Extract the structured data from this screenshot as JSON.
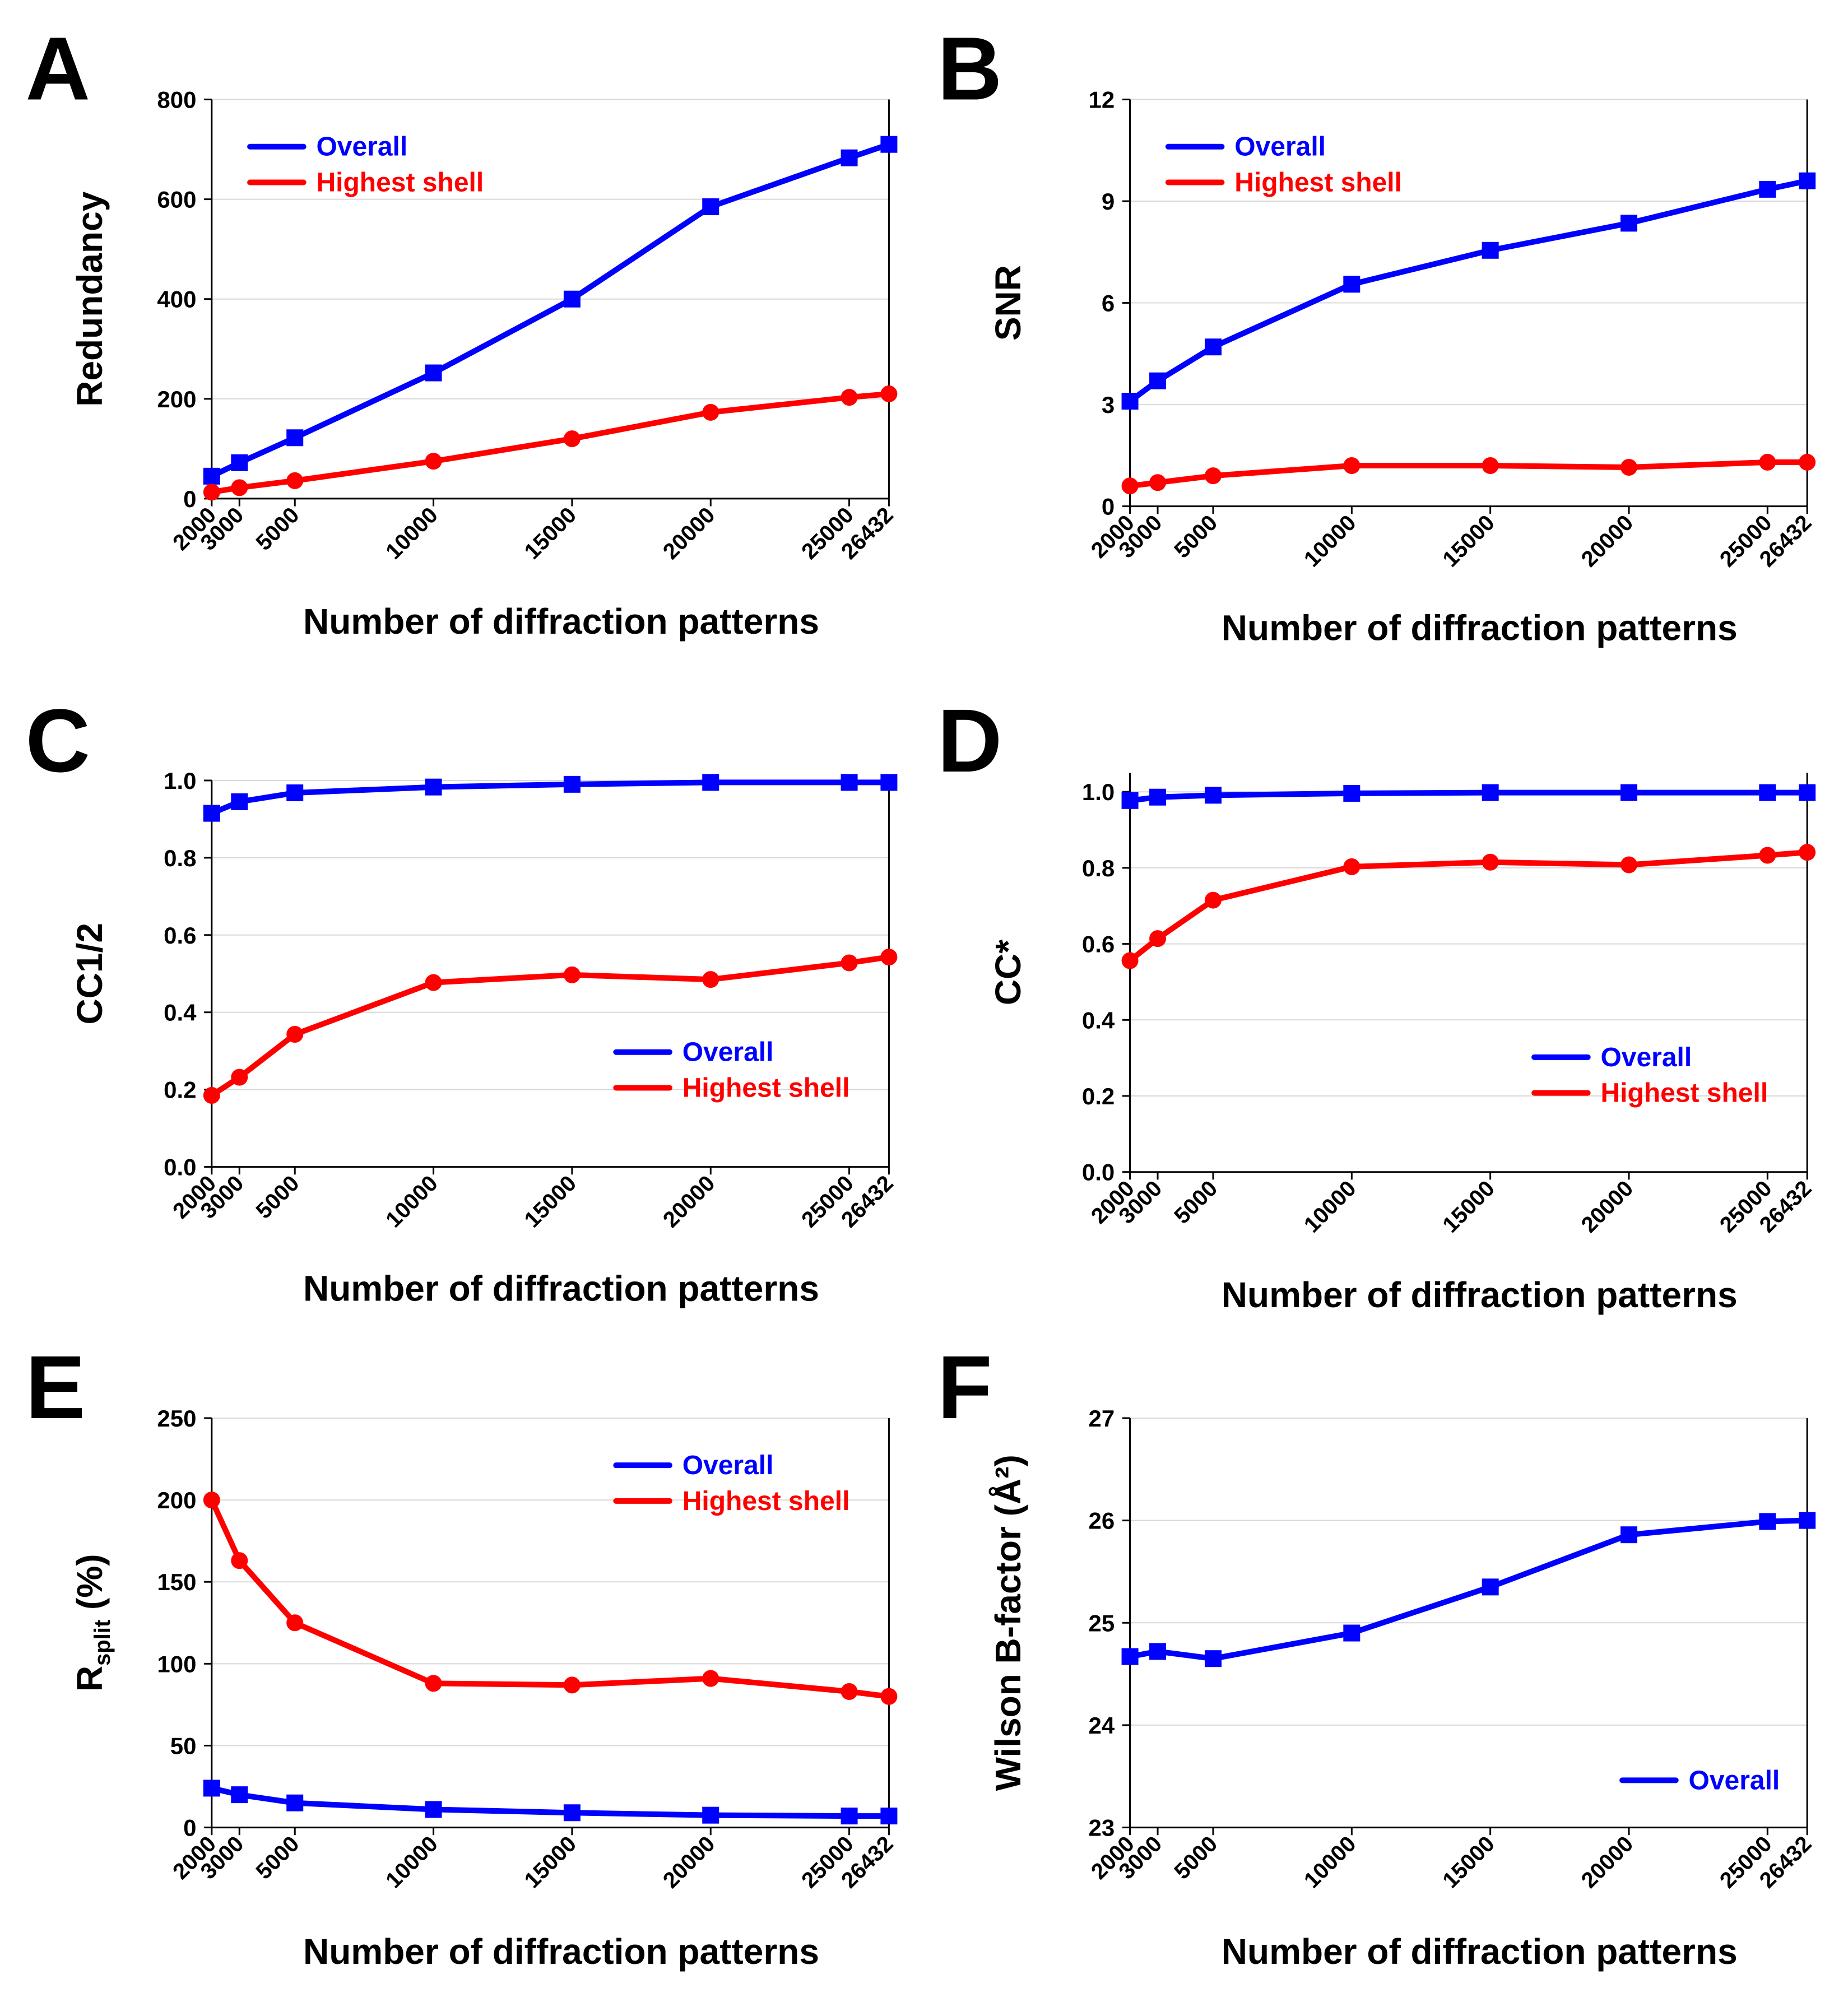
{
  "figure": {
    "x_categories": [
      2000,
      3000,
      5000,
      10000,
      15000,
      20000,
      25000,
      26432
    ],
    "series_colors": {
      "Overall": "#0000ff",
      "Highest shell": "#ff0000"
    },
    "grid": "horizontal light gray gridlines"
  },
  "chart_data": [
    {
      "panel_label": "A",
      "type": "line",
      "xlabel": "Number of diffraction patterns",
      "ylabel": "Redundancy",
      "x": [
        2000,
        3000,
        5000,
        10000,
        15000,
        20000,
        25000,
        26432
      ],
      "xlim": [
        2000,
        26432
      ],
      "ylim": [
        0,
        800
      ],
      "yticks": [
        0,
        200,
        400,
        600,
        800
      ],
      "ytick_labels": [
        "0",
        "200",
        "400",
        "600",
        "800"
      ],
      "legend": "top-left",
      "series": [
        {
          "name": "Overall",
          "color": "#0000ff",
          "marker": "square",
          "values": [
            45,
            72,
            122,
            252,
            400,
            585,
            683,
            710
          ]
        },
        {
          "name": "Highest shell",
          "color": "#ff0000",
          "marker": "circle",
          "values": [
            13,
            22,
            36,
            75,
            120,
            173,
            203,
            210
          ]
        }
      ]
    },
    {
      "panel_label": "B",
      "type": "line",
      "xlabel": "Number of diffraction patterns",
      "ylabel": "SNR",
      "x": [
        2000,
        3000,
        5000,
        10000,
        15000,
        20000,
        25000,
        26432
      ],
      "xlim": [
        2000,
        26432
      ],
      "ylim": [
        0,
        12
      ],
      "yticks": [
        0,
        3,
        6,
        9,
        12
      ],
      "ytick_labels": [
        "0",
        "3",
        "6",
        "9",
        "12"
      ],
      "legend": "top-left",
      "series": [
        {
          "name": "Overall",
          "color": "#0000ff",
          "marker": "square",
          "values": [
            3.1,
            3.7,
            4.7,
            6.55,
            7.55,
            8.35,
            9.35,
            9.6
          ]
        },
        {
          "name": "Highest shell",
          "color": "#ff0000",
          "marker": "circle",
          "values": [
            0.6,
            0.7,
            0.9,
            1.2,
            1.2,
            1.15,
            1.3,
            1.3
          ]
        }
      ]
    },
    {
      "panel_label": "C",
      "type": "line",
      "xlabel": "Number of diffraction patterns",
      "ylabel": "CC1/2",
      "x": [
        2000,
        3000,
        5000,
        10000,
        15000,
        20000,
        25000,
        26432
      ],
      "xlim": [
        2000,
        26432
      ],
      "ylim": [
        0,
        1.0
      ],
      "yticks": [
        0,
        0.2,
        0.4,
        0.6,
        0.8,
        1.0
      ],
      "ytick_labels": [
        "0.0",
        "0.2",
        "0.4",
        "0.6",
        "0.8",
        "1.0"
      ],
      "legend": "bottom-right",
      "series": [
        {
          "name": "Overall",
          "color": "#0000ff",
          "marker": "square",
          "values": [
            0.915,
            0.945,
            0.968,
            0.983,
            0.99,
            0.995,
            0.995,
            0.995
          ]
        },
        {
          "name": "Highest shell",
          "color": "#ff0000",
          "marker": "circle",
          "values": [
            0.185,
            0.232,
            0.343,
            0.477,
            0.497,
            0.485,
            0.528,
            0.543
          ]
        }
      ]
    },
    {
      "panel_label": "D",
      "type": "line",
      "xlabel": "Number of diffraction patterns",
      "ylabel": "CC*",
      "x": [
        2000,
        3000,
        5000,
        10000,
        15000,
        20000,
        25000,
        26432
      ],
      "xlim": [
        2000,
        26432
      ],
      "ylim": [
        0,
        1.05
      ],
      "yticks": [
        0,
        0.2,
        0.4,
        0.6,
        0.8,
        1.0
      ],
      "ytick_labels": [
        "0.0",
        "0.2",
        "0.4",
        "0.6",
        "0.8",
        "1.0"
      ],
      "legend": "bottom-right",
      "series": [
        {
          "name": "Overall",
          "color": "#0000ff",
          "marker": "square",
          "values": [
            0.977,
            0.986,
            0.991,
            0.996,
            0.998,
            0.998,
            0.998,
            0.998
          ]
        },
        {
          "name": "Highest shell",
          "color": "#ff0000",
          "marker": "circle",
          "values": [
            0.556,
            0.614,
            0.715,
            0.803,
            0.815,
            0.808,
            0.833,
            0.841
          ]
        }
      ]
    },
    {
      "panel_label": "E",
      "type": "line",
      "xlabel": "Number of diffraction patterns",
      "ylabel": "R",
      "ylabel_sub": "split",
      "ylabel_suffix": " (%)",
      "x": [
        2000,
        3000,
        5000,
        10000,
        15000,
        20000,
        25000,
        26432
      ],
      "xlim": [
        2000,
        26432
      ],
      "ylim": [
        0,
        250
      ],
      "yticks": [
        0,
        50,
        100,
        150,
        200,
        250
      ],
      "ytick_labels": [
        "0",
        "50",
        "100",
        "150",
        "200",
        "250"
      ],
      "legend": "top-right",
      "series": [
        {
          "name": "Overall",
          "color": "#0000ff",
          "marker": "square",
          "values": [
            24,
            20,
            15,
            11,
            9,
            7.5,
            7,
            7
          ]
        },
        {
          "name": "Highest shell",
          "color": "#ff0000",
          "marker": "circle",
          "values": [
            200,
            163,
            125,
            88,
            87,
            91,
            83,
            80
          ]
        }
      ]
    },
    {
      "panel_label": "F",
      "type": "line",
      "xlabel": "Number of diffraction patterns",
      "ylabel": "Wilson B-factor  (Å²)",
      "x": [
        2000,
        3000,
        5000,
        10000,
        15000,
        20000,
        25000,
        26432
      ],
      "xlim": [
        2000,
        26432
      ],
      "ylim": [
        23,
        27
      ],
      "yticks": [
        23,
        24,
        25,
        26,
        27
      ],
      "ytick_labels": [
        "23",
        "24",
        "25",
        "26",
        "27"
      ],
      "legend": "bottom-right",
      "series": [
        {
          "name": "Overall",
          "color": "#0000ff",
          "marker": "square",
          "values": [
            24.67,
            24.72,
            24.65,
            24.9,
            25.35,
            25.86,
            25.99,
            26.0
          ]
        }
      ]
    }
  ]
}
